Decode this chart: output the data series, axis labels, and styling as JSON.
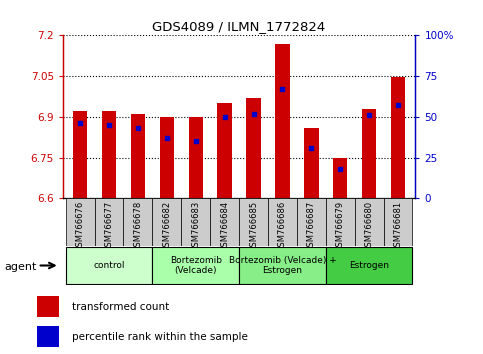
{
  "title": "GDS4089 / ILMN_1772824",
  "samples": [
    "GSM766676",
    "GSM766677",
    "GSM766678",
    "GSM766682",
    "GSM766683",
    "GSM766684",
    "GSM766685",
    "GSM766686",
    "GSM766687",
    "GSM766679",
    "GSM766680",
    "GSM766681"
  ],
  "transformed_count": [
    6.92,
    6.92,
    6.91,
    6.9,
    6.9,
    6.95,
    6.97,
    7.17,
    6.86,
    6.75,
    6.93,
    7.045
  ],
  "percentile_rank": [
    46,
    45,
    43,
    37,
    35,
    50,
    52,
    67,
    31,
    18,
    51,
    57
  ],
  "ymin": 6.6,
  "ymax": 7.2,
  "yticks": [
    6.6,
    6.75,
    6.9,
    7.05,
    7.2
  ],
  "ytick_labels": [
    "6.6",
    "6.75",
    "6.9",
    "7.05",
    "7.2"
  ],
  "right_yticks": [
    0,
    25,
    50,
    75,
    100
  ],
  "right_ytick_labels": [
    "0",
    "25",
    "50",
    "75",
    "100%"
  ],
  "bar_color": "#cc0000",
  "dot_color": "#0000cc",
  "agent_groups": [
    {
      "label": "control",
      "start": 0,
      "end": 3,
      "color": "#ccffcc"
    },
    {
      "label": "Bortezomib\n(Velcade)",
      "start": 3,
      "end": 6,
      "color": "#aaffaa"
    },
    {
      "label": "Bortezomib (Velcade) +\nEstrogen",
      "start": 6,
      "end": 9,
      "color": "#88ee88"
    },
    {
      "label": "Estrogen",
      "start": 9,
      "end": 12,
      "color": "#44cc44"
    }
  ],
  "bar_width": 0.5,
  "background_color": "#ffffff",
  "figsize": [
    4.83,
    3.54
  ],
  "dpi": 100
}
